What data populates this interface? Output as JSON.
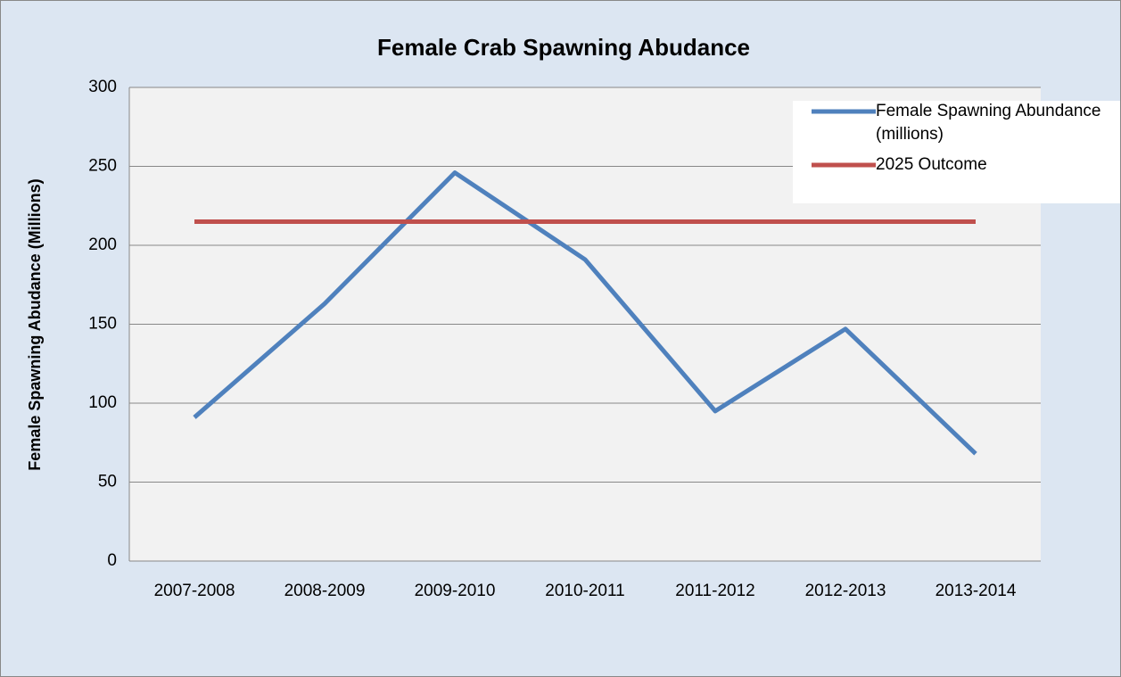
{
  "chart_data": {
    "type": "line",
    "title": "Female Crab Spawning Abudance",
    "y_label": "Female Spawning Abudance (Millions)",
    "categories": [
      "2007-2008",
      "2008-2009",
      "2009-2010",
      "2010-2011",
      "2011-2012",
      "2012-2013",
      "2013-2014"
    ],
    "series": [
      {
        "name": "Female Spawning Abundance (millions)",
        "color": "#4f81bd",
        "values": [
          91,
          163,
          246,
          191,
          95,
          147,
          68
        ]
      },
      {
        "name": "2025 Outcome",
        "color": "#c0504d",
        "values": [
          215,
          215,
          215,
          215,
          215,
          215,
          215
        ]
      }
    ],
    "ylim": [
      0,
      300
    ],
    "yticks": [
      0,
      50,
      100,
      150,
      200,
      250,
      300
    ],
    "grid": true,
    "legend": "upper right"
  }
}
